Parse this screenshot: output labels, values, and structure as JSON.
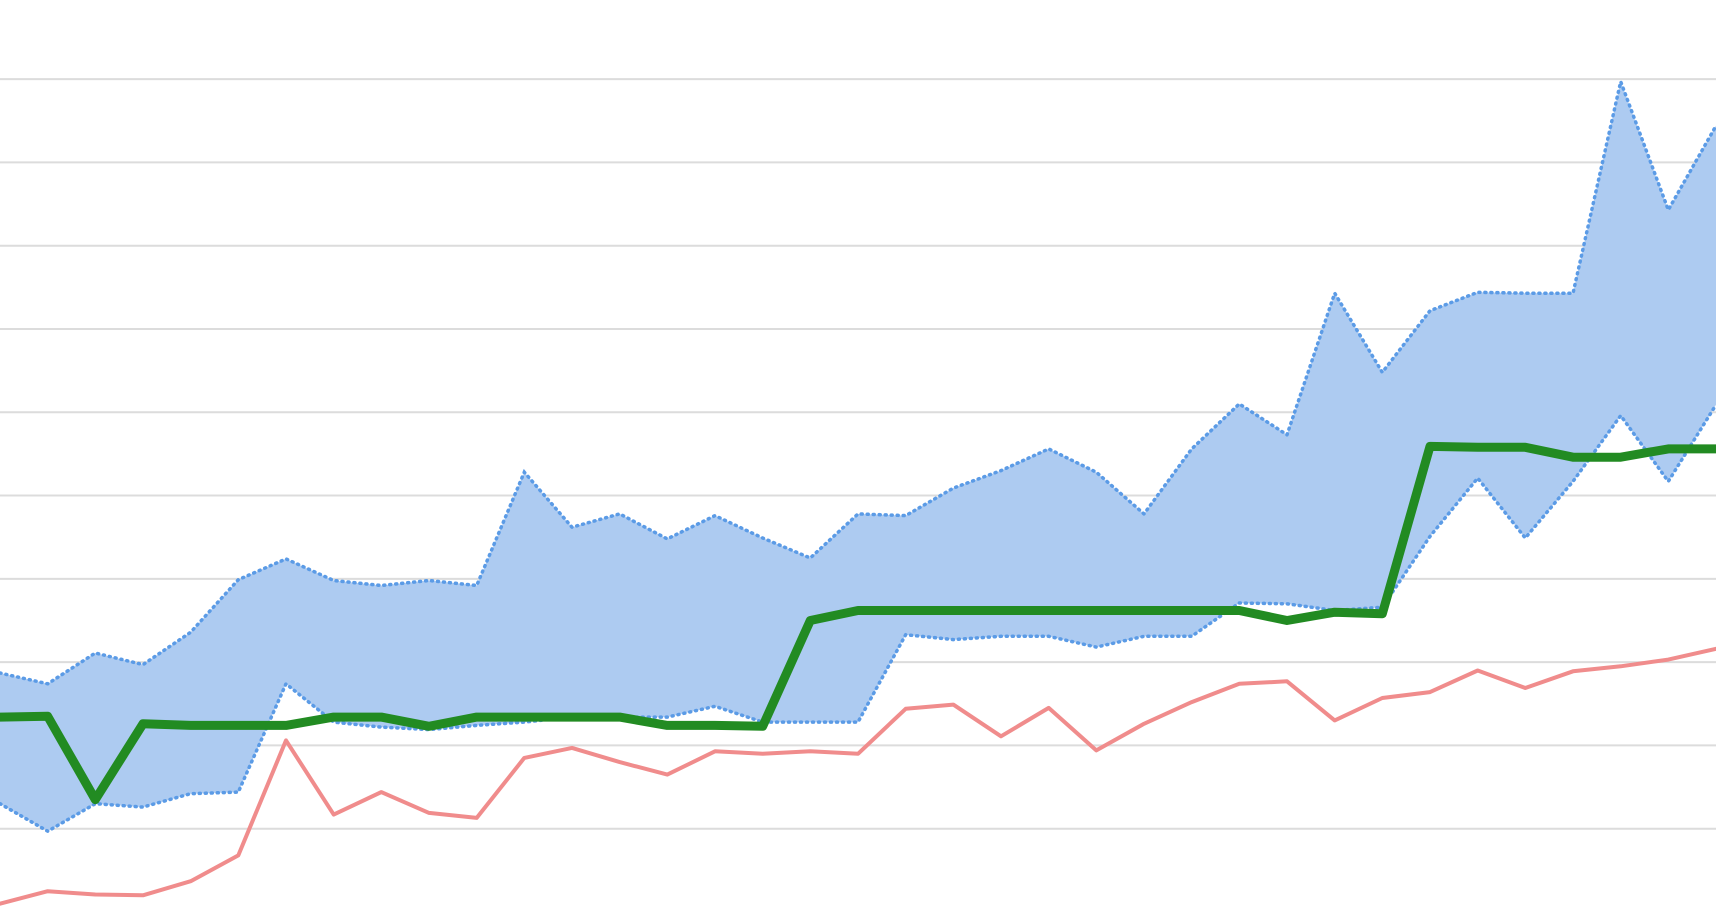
{
  "chart_data": {
    "type": "line",
    "categories": [
      null,
      null,
      null,
      null,
      null,
      null,
      null,
      null,
      null,
      null,
      null,
      null,
      null,
      null,
      null,
      null,
      null,
      null,
      null,
      null,
      null,
      null,
      null,
      null,
      null,
      null,
      null,
      null,
      null,
      null,
      null,
      null,
      null,
      null,
      null,
      null,
      null
    ],
    "ylim": [
      0,
      10.95
    ],
    "yticks": [
      1,
      2,
      3,
      4,
      5,
      6,
      7,
      8,
      9,
      10
    ],
    "grid": true,
    "band": {
      "color": "#adcbf1",
      "edge_color": "#5b9be6",
      "upper": [
        2.87,
        2.74,
        3.11,
        2.97,
        3.36,
        3.99,
        4.24,
        3.98,
        3.92,
        3.98,
        3.92,
        5.28,
        4.62,
        4.78,
        4.48,
        4.76,
        4.49,
        4.25,
        4.78,
        4.76,
        5.09,
        5.3,
        5.56,
        5.28,
        4.78,
        5.56,
        6.1,
        5.73,
        7.43,
        6.48,
        7.22,
        7.44,
        7.43,
        7.43,
        9.97,
        8.43,
        9.44
      ],
      "lower": [
        1.3,
        0.97,
        1.3,
        1.26,
        1.42,
        1.44,
        2.74,
        2.28,
        2.22,
        2.19,
        2.24,
        2.28,
        2.34,
        2.34,
        2.34,
        2.47,
        2.28,
        2.28,
        2.28,
        3.33,
        3.27,
        3.31,
        3.31,
        3.18,
        3.31,
        3.31,
        3.71,
        3.7,
        3.62,
        3.66,
        4.51,
        5.21,
        4.49,
        5.17,
        5.96,
        5.17,
        6.09
      ]
    },
    "series": [
      {
        "color": "#f08c8c",
        "width": 4,
        "values": [
          0.1,
          0.25,
          0.21,
          0.2,
          0.37,
          0.68,
          2.06,
          1.17,
          1.44,
          1.19,
          1.13,
          1.85,
          1.97,
          1.8,
          1.65,
          1.93,
          1.9,
          1.93,
          1.9,
          2.44,
          2.49,
          2.11,
          2.45,
          1.94,
          2.26,
          2.52,
          2.74,
          2.77,
          2.3,
          2.57,
          2.64,
          2.9,
          2.69,
          2.89,
          2.95,
          3.03,
          3.16
        ]
      },
      {
        "color": "#228b22",
        "width": 9,
        "values": [
          2.34,
          2.35,
          1.35,
          2.26,
          2.24,
          2.24,
          2.24,
          2.34,
          2.34,
          2.23,
          2.34,
          2.34,
          2.34,
          2.34,
          2.24,
          2.24,
          2.23,
          3.5,
          3.62,
          3.62,
          3.62,
          3.62,
          3.62,
          3.62,
          3.62,
          3.62,
          3.62,
          3.5,
          3.6,
          3.58,
          5.59,
          5.58,
          5.58,
          5.46,
          5.46,
          5.56,
          5.56
        ]
      }
    ]
  }
}
